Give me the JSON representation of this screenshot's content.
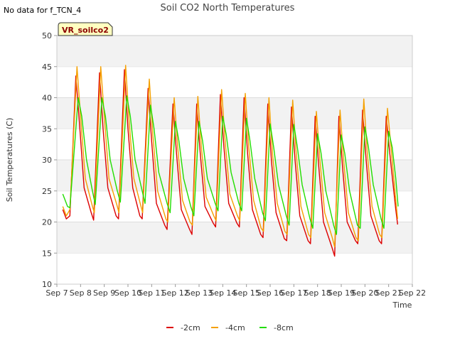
{
  "note": "No data for f_TCN_4",
  "chart_data": {
    "type": "line",
    "title": "Soil CO2 North Temperatures",
    "xlabel": "Time",
    "ylabel": "Soil Temperatures (C)",
    "badge": "VR_soilco2",
    "ylim": [
      10,
      50
    ],
    "yticks": [
      10,
      15,
      20,
      25,
      30,
      35,
      40,
      45,
      50
    ],
    "xlim": [
      7,
      22
    ],
    "xticks": [
      {
        "x": 7,
        "label": "Sep 7"
      },
      {
        "x": 8,
        "label": "Sep 8"
      },
      {
        "x": 9,
        "label": "Sep 9"
      },
      {
        "x": 10,
        "label": "Sep 10"
      },
      {
        "x": 11,
        "label": "Sep 11"
      },
      {
        "x": 12,
        "label": "Sep 12"
      },
      {
        "x": 13,
        "label": "Sep 13"
      },
      {
        "x": 14,
        "label": "Sep 14"
      },
      {
        "x": 15,
        "label": "Sep 15"
      },
      {
        "x": 16,
        "label": "Sep 16"
      },
      {
        "x": 17,
        "label": "Sep 17"
      },
      {
        "x": 18,
        "label": "Sep 18"
      },
      {
        "x": 19,
        "label": "Sep 19"
      },
      {
        "x": 20,
        "label": "Sep 20"
      },
      {
        "x": 21,
        "label": "Sep 21"
      },
      {
        "x": 22,
        "label": "Sep 22"
      }
    ],
    "grid": true,
    "legend_position": "bottom",
    "series": [
      {
        "name": "-2cm",
        "color": "#dd0000",
        "points": [
          [
            7.25,
            22.0
          ],
          [
            7.4,
            20.5
          ],
          [
            7.55,
            21.0
          ],
          [
            7.8,
            43.5
          ],
          [
            7.95,
            36
          ],
          [
            8.15,
            25.5
          ],
          [
            8.45,
            21.5
          ],
          [
            8.55,
            20.3
          ],
          [
            8.8,
            44.0
          ],
          [
            8.95,
            35
          ],
          [
            9.15,
            25.5
          ],
          [
            9.5,
            21.0
          ],
          [
            9.6,
            20.5
          ],
          [
            9.85,
            44.5
          ],
          [
            10.0,
            35
          ],
          [
            10.2,
            25.5
          ],
          [
            10.5,
            21.0
          ],
          [
            10.6,
            20.5
          ],
          [
            10.85,
            41.5
          ],
          [
            11.0,
            33
          ],
          [
            11.2,
            23
          ],
          [
            11.55,
            19.5
          ],
          [
            11.65,
            18.8
          ],
          [
            11.9,
            39.0
          ],
          [
            12.05,
            31
          ],
          [
            12.25,
            22
          ],
          [
            12.6,
            18.8
          ],
          [
            12.7,
            18.0
          ],
          [
            12.9,
            39.0
          ],
          [
            13.05,
            31
          ],
          [
            13.25,
            22.5
          ],
          [
            13.6,
            19.8
          ],
          [
            13.7,
            19.2
          ],
          [
            13.9,
            40.5
          ],
          [
            14.05,
            32
          ],
          [
            14.25,
            23
          ],
          [
            14.6,
            19.8
          ],
          [
            14.7,
            19.2
          ],
          [
            14.9,
            40.0
          ],
          [
            15.05,
            31
          ],
          [
            15.25,
            22
          ],
          [
            15.6,
            18.0
          ],
          [
            15.7,
            17.5
          ],
          [
            15.9,
            39.0
          ],
          [
            16.05,
            30
          ],
          [
            16.25,
            21.5
          ],
          [
            16.6,
            17.3
          ],
          [
            16.7,
            17.0
          ],
          [
            16.9,
            38.5
          ],
          [
            17.05,
            30
          ],
          [
            17.25,
            21
          ],
          [
            17.6,
            17.0
          ],
          [
            17.7,
            16.5
          ],
          [
            17.9,
            37.0
          ],
          [
            18.05,
            29
          ],
          [
            18.25,
            20
          ],
          [
            18.6,
            16.0
          ],
          [
            18.72,
            14.5
          ],
          [
            18.9,
            37.0
          ],
          [
            19.05,
            29
          ],
          [
            19.25,
            20
          ],
          [
            19.6,
            17.0
          ],
          [
            19.7,
            16.5
          ],
          [
            19.9,
            38.0
          ],
          [
            20.05,
            30
          ],
          [
            20.25,
            21
          ],
          [
            20.6,
            17.0
          ],
          [
            20.7,
            16.5
          ],
          [
            20.9,
            37.0
          ],
          [
            21.05,
            31
          ],
          [
            21.3,
            22
          ],
          [
            21.38,
            19.6
          ]
        ]
      },
      {
        "name": "-4cm",
        "color": "#f5a000",
        "points": [
          [
            7.25,
            22.5
          ],
          [
            7.4,
            21.0
          ],
          [
            7.55,
            22.0
          ],
          [
            7.85,
            45.0
          ],
          [
            8.0,
            37
          ],
          [
            8.2,
            27
          ],
          [
            8.5,
            22.5
          ],
          [
            8.58,
            21.5
          ],
          [
            8.85,
            45.0
          ],
          [
            9.0,
            37
          ],
          [
            9.2,
            27
          ],
          [
            9.55,
            22.5
          ],
          [
            9.62,
            21.5
          ],
          [
            9.9,
            45.2
          ],
          [
            10.05,
            36
          ],
          [
            10.25,
            27
          ],
          [
            10.55,
            22.5
          ],
          [
            10.62,
            21.5
          ],
          [
            10.9,
            43.0
          ],
          [
            11.05,
            34
          ],
          [
            11.25,
            25
          ],
          [
            11.6,
            20.5
          ],
          [
            11.68,
            20.0
          ],
          [
            11.95,
            40.0
          ],
          [
            12.1,
            32
          ],
          [
            12.3,
            23.5
          ],
          [
            12.62,
            20.0
          ],
          [
            12.72,
            19.5
          ],
          [
            12.95,
            40.2
          ],
          [
            13.1,
            32
          ],
          [
            13.3,
            24
          ],
          [
            13.62,
            21.0
          ],
          [
            13.72,
            20.2
          ],
          [
            13.95,
            41.3
          ],
          [
            14.1,
            33
          ],
          [
            14.3,
            24.5
          ],
          [
            14.62,
            21.0
          ],
          [
            14.72,
            20.2
          ],
          [
            14.95,
            40.7
          ],
          [
            15.1,
            32
          ],
          [
            15.3,
            23.5
          ],
          [
            15.62,
            19.0
          ],
          [
            15.72,
            18.5
          ],
          [
            15.95,
            40.0
          ],
          [
            16.1,
            31
          ],
          [
            16.3,
            23
          ],
          [
            16.62,
            18.5
          ],
          [
            16.72,
            18.0
          ],
          [
            16.95,
            39.6
          ],
          [
            17.1,
            31
          ],
          [
            17.3,
            22.5
          ],
          [
            17.62,
            18.0
          ],
          [
            17.72,
            17.5
          ],
          [
            17.95,
            37.8
          ],
          [
            18.1,
            30
          ],
          [
            18.3,
            21.5
          ],
          [
            18.62,
            17.5
          ],
          [
            18.72,
            16.0
          ],
          [
            18.95,
            38.0
          ],
          [
            19.1,
            30
          ],
          [
            19.3,
            21.5
          ],
          [
            19.62,
            17.5
          ],
          [
            19.72,
            17.0
          ],
          [
            19.95,
            39.8
          ],
          [
            20.1,
            31
          ],
          [
            20.3,
            22.5
          ],
          [
            20.62,
            18.0
          ],
          [
            20.72,
            17.5
          ],
          [
            20.95,
            38.3
          ],
          [
            21.1,
            32
          ],
          [
            21.3,
            23.5
          ],
          [
            21.38,
            20.5
          ]
        ]
      },
      {
        "name": "-8cm",
        "color": "#22dd00",
        "points": [
          [
            7.25,
            24.5
          ],
          [
            7.45,
            22.5
          ],
          [
            7.55,
            22.3
          ],
          [
            7.9,
            40.0
          ],
          [
            8.05,
            37
          ],
          [
            8.25,
            30
          ],
          [
            8.5,
            25
          ],
          [
            8.62,
            22.8
          ],
          [
            8.9,
            40.0
          ],
          [
            9.05,
            37
          ],
          [
            9.25,
            30
          ],
          [
            9.55,
            25
          ],
          [
            9.68,
            23.2
          ],
          [
            9.95,
            40.3
          ],
          [
            10.1,
            37
          ],
          [
            10.3,
            30
          ],
          [
            10.6,
            25
          ],
          [
            10.72,
            23.0
          ],
          [
            10.95,
            38.8
          ],
          [
            11.1,
            35
          ],
          [
            11.3,
            28
          ],
          [
            11.65,
            23
          ],
          [
            11.78,
            21.5
          ],
          [
            12.0,
            36.2
          ],
          [
            12.15,
            33
          ],
          [
            12.35,
            27
          ],
          [
            12.65,
            22.5
          ],
          [
            12.78,
            21.0
          ],
          [
            13.0,
            36.2
          ],
          [
            13.15,
            33
          ],
          [
            13.35,
            27
          ],
          [
            13.68,
            23
          ],
          [
            13.8,
            21.8
          ],
          [
            14.0,
            37.0
          ],
          [
            14.15,
            34
          ],
          [
            14.35,
            28
          ],
          [
            14.68,
            23
          ],
          [
            14.8,
            21.8
          ],
          [
            15.0,
            36.7
          ],
          [
            15.15,
            33
          ],
          [
            15.35,
            27
          ],
          [
            15.68,
            21.5
          ],
          [
            15.8,
            20.2
          ],
          [
            16.0,
            35.8
          ],
          [
            16.15,
            32
          ],
          [
            16.35,
            26
          ],
          [
            16.68,
            21
          ],
          [
            16.8,
            19.5
          ],
          [
            17.0,
            35.7
          ],
          [
            17.15,
            32
          ],
          [
            17.35,
            26
          ],
          [
            17.68,
            20.5
          ],
          [
            17.8,
            19.0
          ],
          [
            18.0,
            34.2
          ],
          [
            18.15,
            31
          ],
          [
            18.35,
            25
          ],
          [
            18.68,
            19.5
          ],
          [
            18.8,
            18.0
          ],
          [
            19.0,
            34.0
          ],
          [
            19.15,
            31
          ],
          [
            19.35,
            25
          ],
          [
            19.68,
            19.5
          ],
          [
            19.8,
            19.0
          ],
          [
            20.0,
            35.3
          ],
          [
            20.15,
            32
          ],
          [
            20.35,
            26
          ],
          [
            20.68,
            20.5
          ],
          [
            20.8,
            19.0
          ],
          [
            21.0,
            34.6
          ],
          [
            21.15,
            32
          ],
          [
            21.3,
            27
          ],
          [
            21.4,
            22.5
          ]
        ]
      }
    ]
  }
}
